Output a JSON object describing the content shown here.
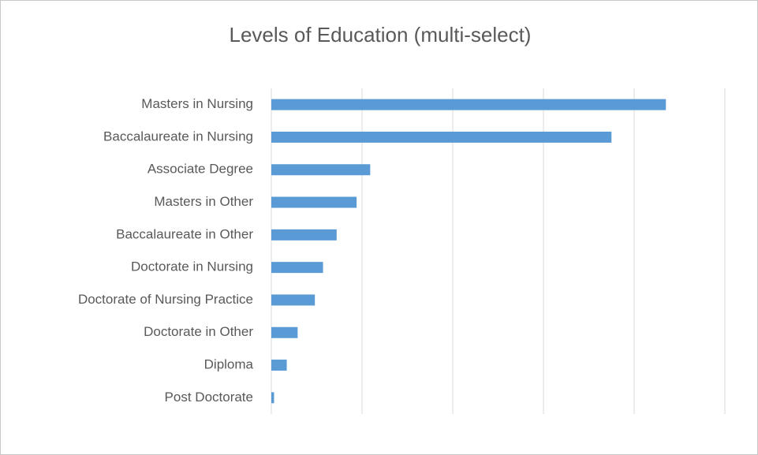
{
  "chart_data": {
    "type": "bar",
    "orientation": "horizontal",
    "title": "Levels of Education (multi-select)",
    "categories": [
      "Masters in Nursing",
      "Baccalaureate in Nursing",
      "Associate Degree",
      "Masters in Other",
      "Baccalaureate in Other",
      "Doctorate in Nursing",
      "Doctorate of Nursing Practice",
      "Doctorate in Other",
      "Diploma",
      "Post Doctorate"
    ],
    "values": [
      4.35,
      3.75,
      1.09,
      0.94,
      0.72,
      0.57,
      0.48,
      0.29,
      0.17,
      0.03
    ],
    "color": "#5b9bd5",
    "xlim": [
      0,
      5
    ],
    "xticks": [
      0,
      1,
      2,
      3,
      4,
      5
    ],
    "grid": true
  }
}
